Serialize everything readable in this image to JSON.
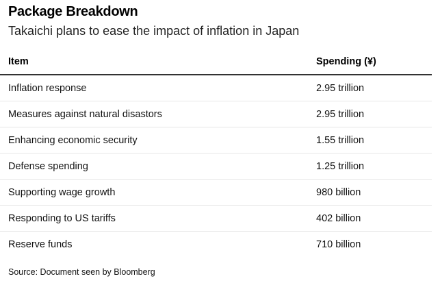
{
  "header": {
    "title": "Package Breakdown",
    "subtitle": "Takaichi plans to ease the impact of inflation in Japan"
  },
  "table": {
    "columns": [
      "Item",
      "Spending (¥)"
    ],
    "rows": [
      [
        "Inflation response",
        "2.95 trillion"
      ],
      [
        "Measures against natural disastors",
        "2.95 trillion"
      ],
      [
        "Enhancing economic security",
        "1.55 trillion"
      ],
      [
        "Defense spending",
        "1.25 trillion"
      ],
      [
        "Supporting wage growth",
        "980 billion"
      ],
      [
        "Responding to US tariffs",
        "402 billion"
      ],
      [
        "Reserve funds",
        "710 billion"
      ]
    ]
  },
  "source": "Source: Document seen by Bloomberg"
}
